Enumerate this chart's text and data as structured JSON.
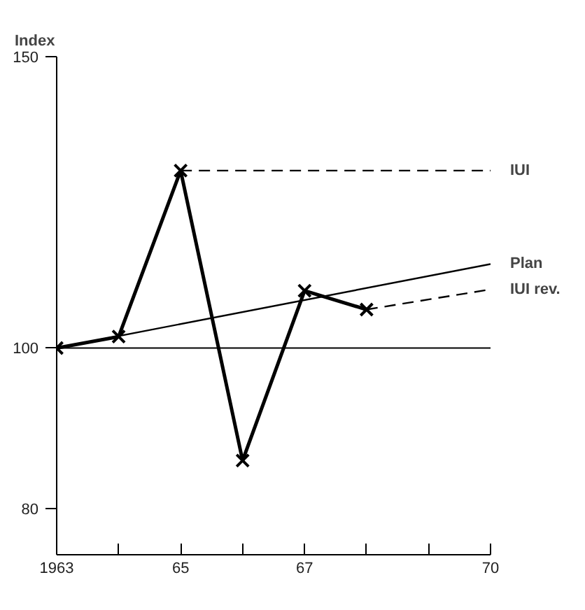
{
  "chart_data": {
    "type": "line",
    "ylabel": "Index",
    "log": "y",
    "xlim": [
      1963,
      1970
    ],
    "ylim": [
      75,
      150
    ],
    "xticks": [
      {
        "value": 1963,
        "label": "1963"
      },
      {
        "value": 1964,
        "label": null
      },
      {
        "value": 1965,
        "label": "65"
      },
      {
        "value": 1966,
        "label": null
      },
      {
        "value": 1967,
        "label": "67"
      },
      {
        "value": 1968,
        "label": null
      },
      {
        "value": 1969,
        "label": null
      },
      {
        "value": 1970,
        "label": "70"
      }
    ],
    "yticks": [
      80,
      100,
      150
    ],
    "grid": false,
    "series": [
      {
        "color": "#000000",
        "x": [
          1963,
          1964,
          1965,
          1966,
          1967,
          1968
        ],
        "values": [
          100,
          101.6,
          128,
          85.5,
          108.3,
          105.5
        ],
        "marker": "cross",
        "line_style": "solid"
      },
      {
        "name": "IUI",
        "color": "#000000",
        "x": [
          1965,
          1970
        ],
        "values": [
          128,
          128
        ],
        "line_style": "dashed"
      },
      {
        "name": "Plan",
        "color": "#000000",
        "x": [
          1963,
          1970
        ],
        "values": [
          100,
          112.4
        ],
        "line_style": "solid"
      },
      {
        "name": "IUI rev.",
        "color": "#000000",
        "x": [
          1968,
          1970
        ],
        "values": [
          105.5,
          108.5
        ],
        "line_style": "dashed"
      }
    ],
    "ref_lines": [
      {
        "axis": "y",
        "value": 100,
        "color": "#000000"
      }
    ]
  }
}
